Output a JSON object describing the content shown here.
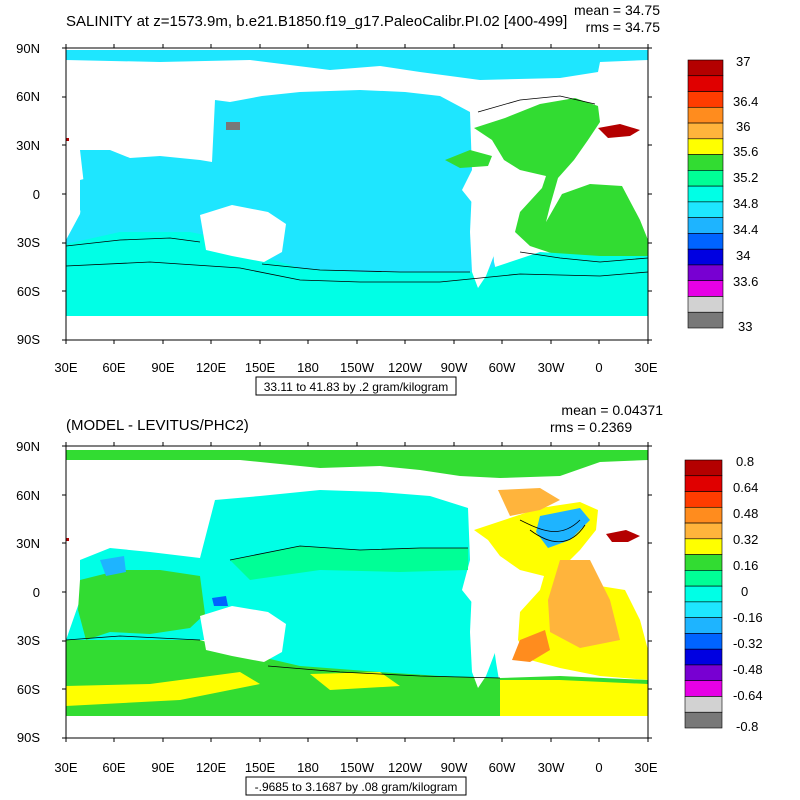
{
  "panels": [
    {
      "title": "SALINITY at z=1573.9m, b.e21.B1850.f19_g17.PaleoCalibr.PI.02 [400-499]",
      "mean": "mean = 34.75",
      "rms": "rms = 34.75",
      "range_note": "33.11 to 41.83 by .2 gram/kilogram",
      "lat_labels": [
        "90N",
        "60N",
        "30N",
        "0",
        "30S",
        "60S",
        "90S"
      ],
      "lon_labels": [
        "30E",
        "60E",
        "90E",
        "120E",
        "150E",
        "180",
        "150W",
        "120W",
        "90W",
        "60W",
        "30W",
        "0",
        "30E"
      ],
      "colorbar": {
        "labels": [
          "37",
          "36.4",
          "36",
          "35.6",
          "35.2",
          "34.8",
          "34.4",
          "34",
          "33.6",
          "33"
        ],
        "colors": [
          "#b40000",
          "#e00000",
          "#ff3c00",
          "#ff8c1e",
          "#ffb43c",
          "#ffff00",
          "#32dc32",
          "#00ff96",
          "#00ffe6",
          "#1ee6ff",
          "#1eb4ff",
          "#0064ff",
          "#0000e1",
          "#7800d2",
          "#e600e6",
          "#d2d2d2",
          "#787878"
        ]
      }
    },
    {
      "title": "(MODEL - LEVITUS/PHC2)",
      "mean": "mean = 0.04371",
      "rms": "rms = 0.2369",
      "range_note": "-.9685 to 3.1687 by .08 gram/kilogram",
      "lat_labels": [
        "90N",
        "60N",
        "30N",
        "0",
        "30S",
        "60S",
        "90S"
      ],
      "lon_labels": [
        "30E",
        "60E",
        "90E",
        "120E",
        "150E",
        "180",
        "150W",
        "120W",
        "90W",
        "60W",
        "30W",
        "0",
        "30E"
      ],
      "colorbar": {
        "labels": [
          "0.8",
          "0.64",
          "0.48",
          "0.32",
          "0.16",
          "0",
          "-0.16",
          "-0.32",
          "-0.48",
          "-0.64",
          "-0.8"
        ],
        "colors": [
          "#b40000",
          "#e00000",
          "#ff3c00",
          "#ff8c1e",
          "#ffb43c",
          "#ffff00",
          "#32dc32",
          "#00ff96",
          "#00ffe6",
          "#1ee6ff",
          "#1eb4ff",
          "#0064ff",
          "#0000e1",
          "#7800d2",
          "#e600e6",
          "#d2d2d2",
          "#787878"
        ]
      }
    }
  ]
}
